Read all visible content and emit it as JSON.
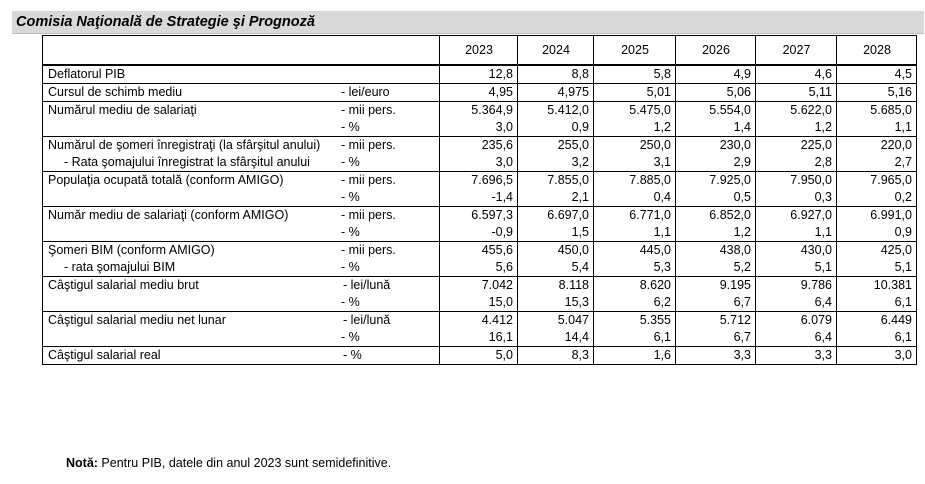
{
  "header": {
    "title": "Comisia Naţională de Strategie şi Prognoză"
  },
  "table": {
    "years": [
      "2023",
      "2024",
      "2025",
      "2026",
      "2027",
      "2028"
    ],
    "rows": [
      {
        "label": "Deflatorul PIB",
        "unit": "",
        "values": [
          "12,8",
          "8,8",
          "5,8",
          "4,9",
          "4,6",
          "4,5"
        ]
      },
      {
        "label": "Cursul de schimb mediu",
        "unit": "- lei/euro",
        "values": [
          "4,95",
          "4,975",
          "5,01",
          "5,06",
          "5,11",
          "5,16"
        ]
      },
      {
        "label": "Numărul mediu de salariaţi",
        "unit": "- mii pers.",
        "values": [
          "5.364,9",
          "5.412,0",
          "5.475,0",
          "5.554,0",
          "5.622,0",
          "5.685,0"
        ],
        "sub_label": "",
        "sub_unit": "- %",
        "sub_values": [
          "3,0",
          "0,9",
          "1,2",
          "1,4",
          "1,2",
          "1,1"
        ]
      },
      {
        "label": "Numărul de şomeri înregistraţi (la sfârşitul anului)",
        "unit": "- mii pers.",
        "values": [
          "235,6",
          "255,0",
          "250,0",
          "230,0",
          "225,0",
          "220,0"
        ],
        "sub_label": "- Rata şomajului înregistrat la sfârşitul anului",
        "sub_unit": "- %",
        "sub_values": [
          "3,0",
          "3,2",
          "3,1",
          "2,9",
          "2,8",
          "2,7"
        ]
      },
      {
        "label": "Populaţia ocupată totală  (conform  AMIGO)",
        "unit": "- mii pers.",
        "values": [
          "7.696,5",
          "7.855,0",
          "7.885,0",
          "7.925,0",
          "7.950,0",
          "7.965,0"
        ],
        "sub_label": "",
        "sub_unit": "- %",
        "sub_values": [
          "-1,4",
          "2,1",
          "0,4",
          "0,5",
          "0,3",
          "0,2"
        ]
      },
      {
        "label": "Număr mediu de salariaţi (conform  AMIGO)",
        "unit": "- mii pers.",
        "values": [
          "6.597,3",
          "6.697,0",
          "6.771,0",
          "6.852,0",
          "6.927,0",
          "6.991,0"
        ],
        "sub_label": "",
        "sub_unit": "- %",
        "sub_values": [
          "-0,9",
          "1,5",
          "1,1",
          "1,2",
          "1,1",
          "0,9"
        ]
      },
      {
        "label": "Şomeri BIM (conform  AMIGO)",
        "unit": "- mii pers.",
        "values": [
          "455,6",
          "450,0",
          "445,0",
          "438,0",
          "430,0",
          "425,0"
        ],
        "sub_label": "- rata şomajului BIM",
        "sub_unit": "- %",
        "sub_values": [
          "5,6",
          "5,4",
          "5,3",
          "5,2",
          "5,1",
          "5,1"
        ]
      },
      {
        "label": "Câştigul salarial mediu brut",
        "unit": "- lei/lună",
        "values": [
          "7.042",
          "8.118",
          "8.620",
          "9.195",
          "9.786",
          "10.381"
        ],
        "sub_label": "",
        "sub_unit": "- %",
        "sub_values": [
          "15,0",
          "15,3",
          "6,2",
          "6,7",
          "6,4",
          "6,1"
        ]
      },
      {
        "label": "Câştigul salarial mediu net lunar",
        "unit": "- lei/lună",
        "values": [
          "4.412",
          "5.047",
          "5.355",
          "5.712",
          "6.079",
          "6.449"
        ],
        "sub_label": "",
        "sub_unit": "- %",
        "sub_values": [
          "16,1",
          "14,4",
          "6,1",
          "6,7",
          "6,4",
          "6,1"
        ]
      },
      {
        "label": "Câştigul salarial real",
        "unit": "- %",
        "values": [
          "5,0",
          "8,3",
          "1,6",
          "3,3",
          "3,3",
          "3,0"
        ]
      }
    ]
  },
  "note": {
    "prefix": "Notă:",
    "text": " Pentru PIB, datele din anul 2023 sunt semidefinitive."
  }
}
